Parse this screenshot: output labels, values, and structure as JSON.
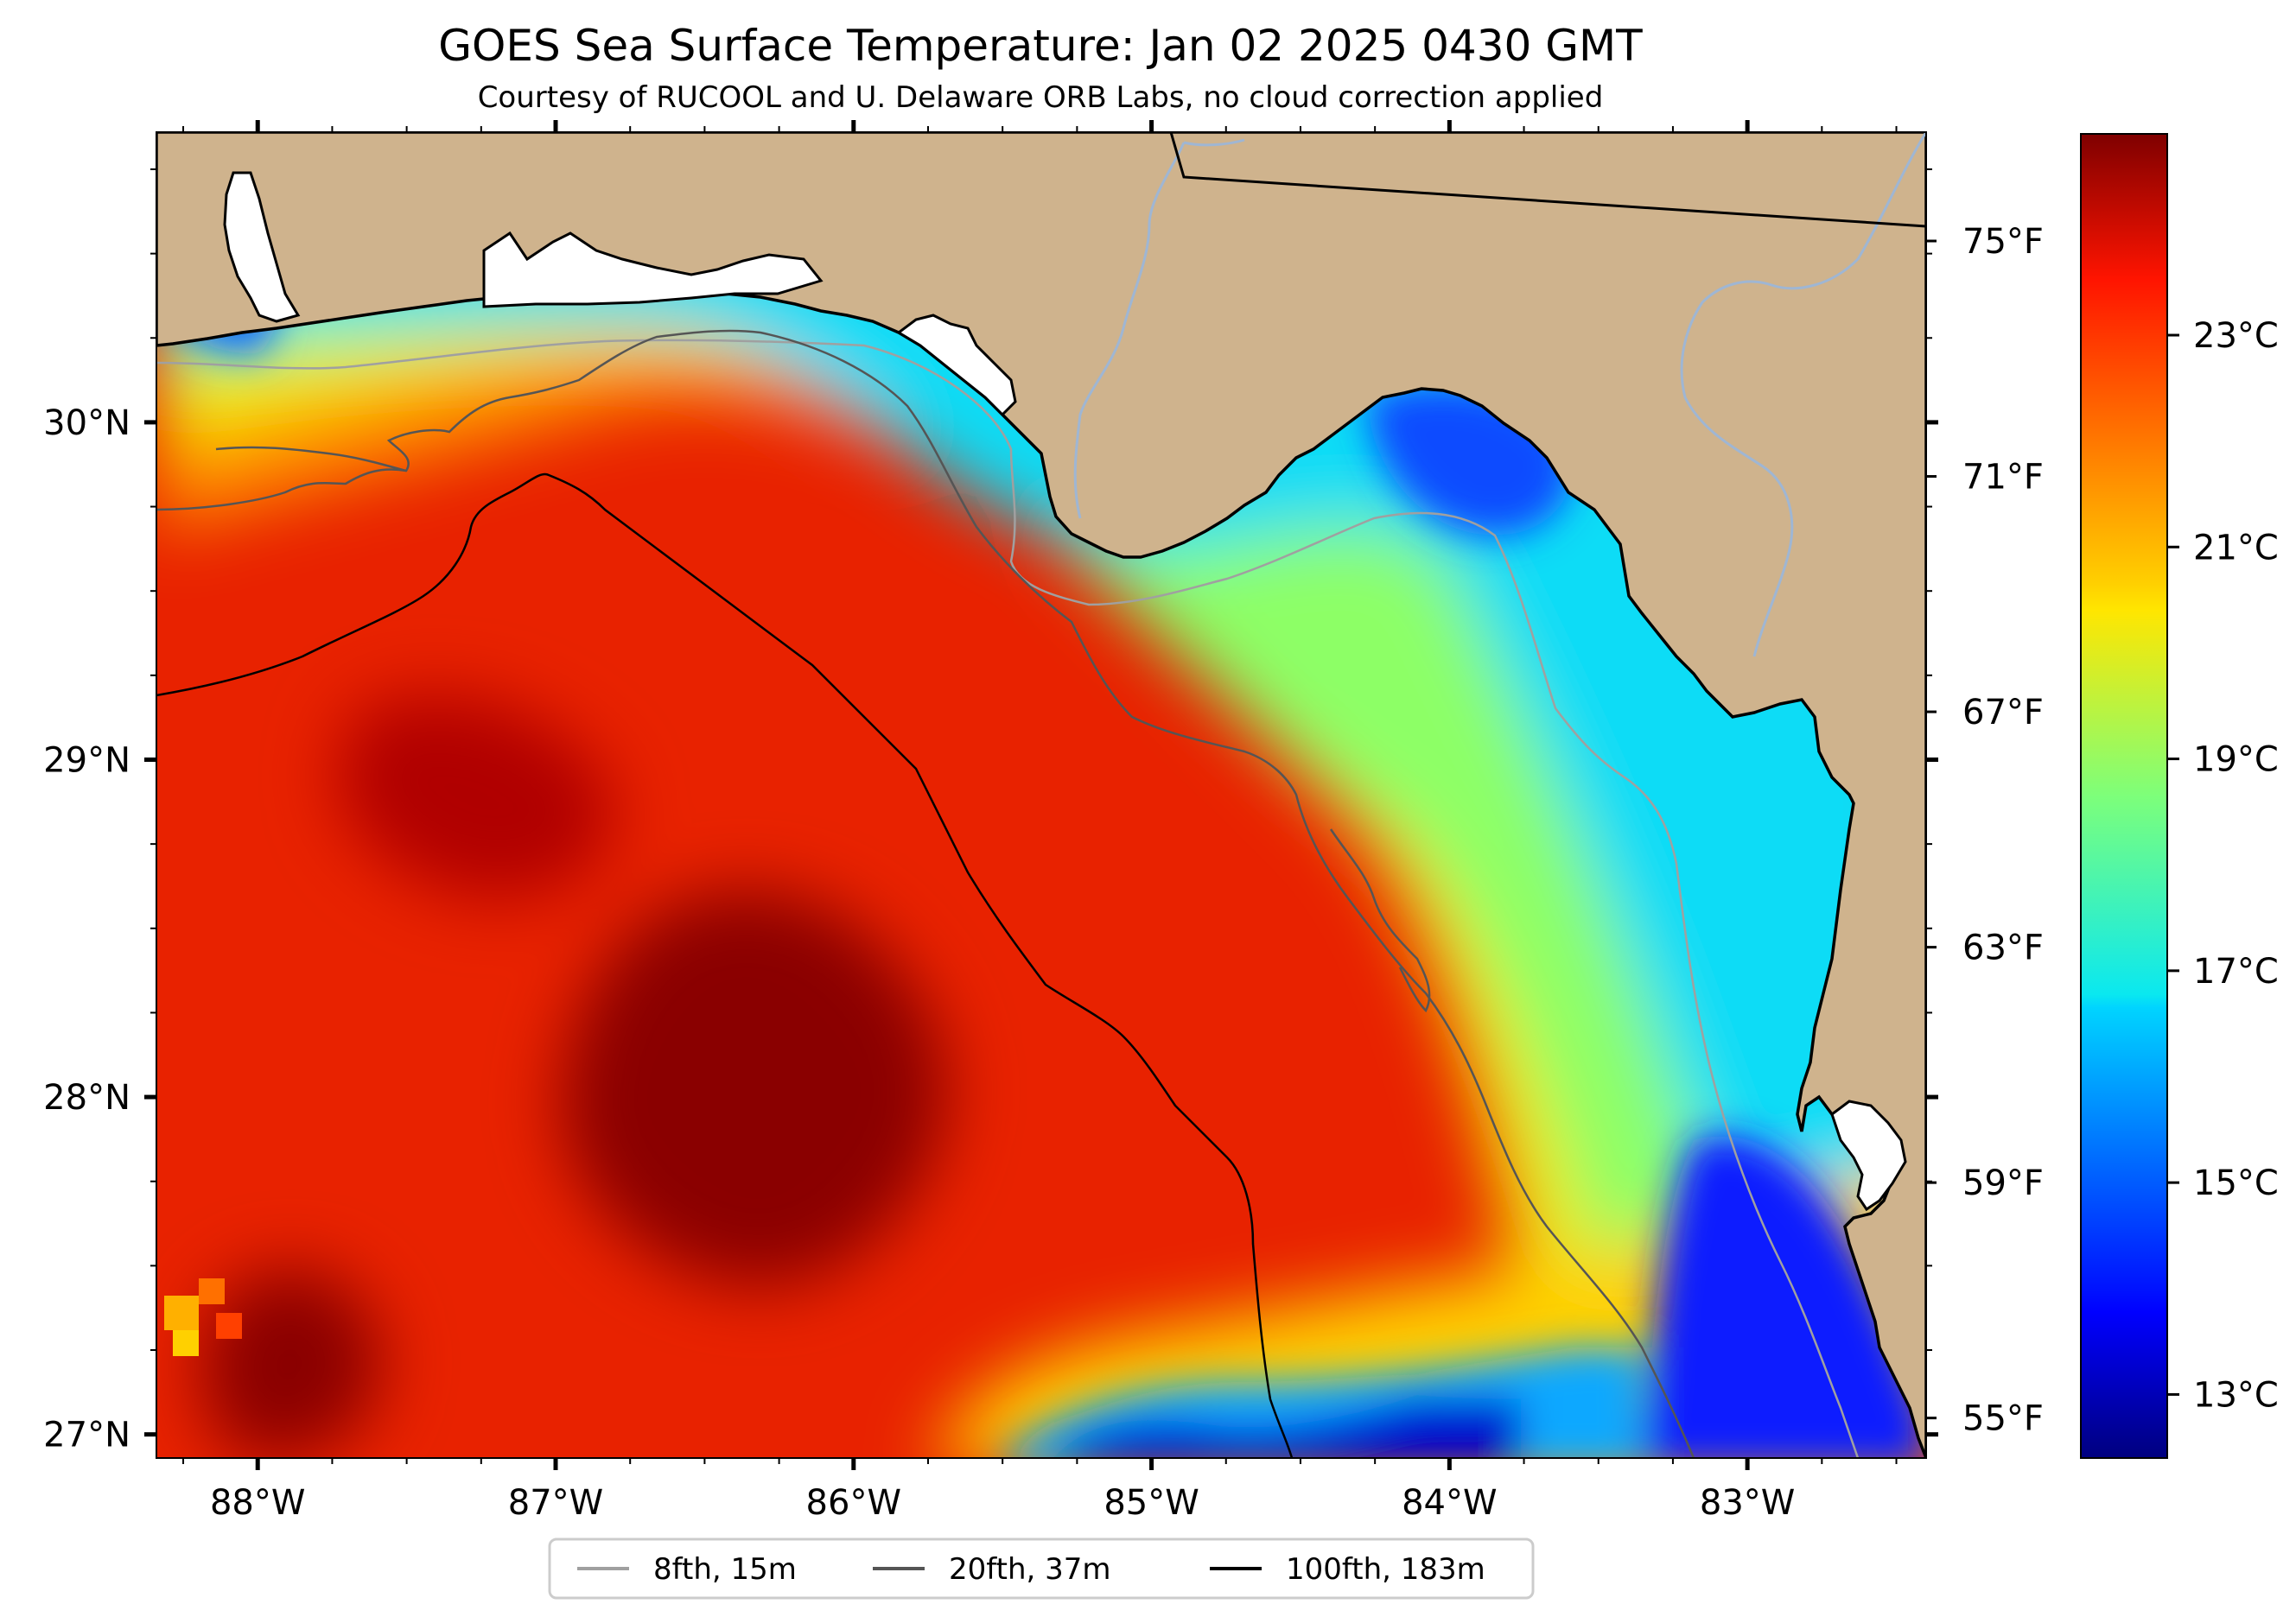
{
  "title": "GOES Sea Surface Temperature: Jan 02 2025 0430 GMT",
  "subtitle": "Courtesy of RUCOOL and U. Delaware ORB Labs, no cloud correction applied",
  "axes": {
    "lon_ticks": [
      {
        "value": -88,
        "label": "88°W"
      },
      {
        "value": -87,
        "label": "87°W"
      },
      {
        "value": -86,
        "label": "86°W"
      },
      {
        "value": -85,
        "label": "85°W"
      },
      {
        "value": -84,
        "label": "84°W"
      },
      {
        "value": -83,
        "label": "83°W"
      }
    ],
    "lat_ticks": [
      {
        "value": 30,
        "label": "30°N"
      },
      {
        "value": 29,
        "label": "29°N"
      },
      {
        "value": 28,
        "label": "28°N"
      },
      {
        "value": 27,
        "label": "27°N"
      }
    ],
    "lon_range": [
      -88.34,
      -82.4
    ],
    "lat_range": [
      26.93,
      30.86
    ]
  },
  "colorbar": {
    "units_primary": "°C",
    "range_c": [
      12.4,
      24.9
    ],
    "celsius_ticks": [
      {
        "value": 23,
        "label": "23°C"
      },
      {
        "value": 21,
        "label": "21°C"
      },
      {
        "value": 19,
        "label": "19°C"
      },
      {
        "value": 17,
        "label": "17°C"
      },
      {
        "value": 15,
        "label": "15°C"
      },
      {
        "value": 13,
        "label": "13°C"
      }
    ],
    "fahrenheit_ticks": [
      {
        "value": 75,
        "label": "75°F"
      },
      {
        "value": 71,
        "label": "71°F"
      },
      {
        "value": 67,
        "label": "67°F"
      },
      {
        "value": 63,
        "label": "63°F"
      },
      {
        "value": 59,
        "label": "59°F"
      },
      {
        "value": 55,
        "label": "55°F"
      }
    ]
  },
  "legend": [
    {
      "label": "8fth, 15m",
      "color": "#a0a0a0"
    },
    {
      "label": "20fth, 37m",
      "color": "#555555"
    },
    {
      "label": "100fth, 183m",
      "color": "#000000"
    }
  ],
  "colors": {
    "land": "#cfb38d",
    "river": "#9fb6d3",
    "deep_warm": "#7d0000",
    "cold": "#0000a8"
  }
}
